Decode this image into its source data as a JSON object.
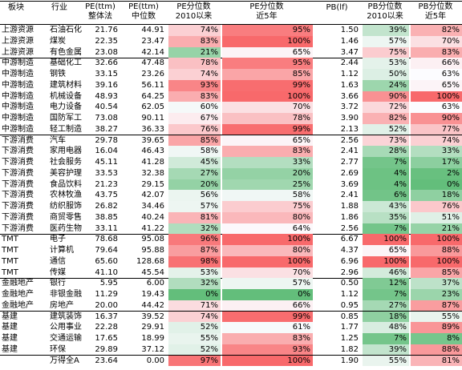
{
  "header": {
    "columns": [
      [
        "板块"
      ],
      [
        "行业"
      ],
      [
        "PE(ttm)",
        "整体法"
      ],
      [
        "PE(ttm)",
        "中位数"
      ],
      [
        "PE分位数",
        "2010以来"
      ],
      [
        "PE分位数",
        "近5年"
      ],
      [
        "PB(lf)"
      ],
      [
        "PB分位数",
        "2010以来"
      ],
      [
        "PB分位数",
        "近5年"
      ]
    ]
  },
  "table": {
    "rows": [
      [
        "上游资源",
        "石油石化",
        "21.76",
        "44.91",
        "74%",
        "95%",
        "1.50",
        "39%",
        "82%"
      ],
      [
        "上游资源",
        "煤炭",
        "22.35",
        "23.47",
        "83%",
        "100%",
        "1.46",
        "57%",
        "70%"
      ],
      [
        "上游资源",
        "有色金属",
        "23.08",
        "42.14",
        "21%",
        "65%",
        "3.47",
        "75%",
        "83%"
      ],
      [
        "中游制造",
        "基础化工",
        "32.66",
        "47.48",
        "78%",
        "95%",
        "2.44",
        "53%",
        "66%"
      ],
      [
        "中游制造",
        "钢铁",
        "33.15",
        "23.26",
        "74%",
        "85%",
        "1.12",
        "50%",
        "63%"
      ],
      [
        "中游制造",
        "建筑材料",
        "39.16",
        "56.11",
        "93%",
        "99%",
        "1.63",
        "24%",
        "65%"
      ],
      [
        "中游制造",
        "机械设备",
        "48.93",
        "64.25",
        "83%",
        "100%",
        "3.66",
        "90%",
        "100%"
      ],
      [
        "中游制造",
        "电力设备",
        "40.54",
        "62.05",
        "60%",
        "70%",
        "3.72",
        "72%",
        "63%"
      ],
      [
        "中游制造",
        "国防军工",
        "73.08",
        "90.11",
        "67%",
        "78%",
        "3.90",
        "82%",
        "90%"
      ],
      [
        "中游制造",
        "轻工制造",
        "38.27",
        "36.33",
        "76%",
        "99%",
        "2.13",
        "52%",
        "77%"
      ],
      [
        "下游消费",
        "汽车",
        "29.78",
        "39.65",
        "85%",
        "65%",
        "2.56",
        "73%",
        "74%"
      ],
      [
        "下游消费",
        "家用电器",
        "16.04",
        "46.43",
        "58%",
        "83%",
        "2.41",
        "28%",
        "33%"
      ],
      [
        "下游消费",
        "社会服务",
        "45.11",
        "41.28",
        "45%",
        "33%",
        "2.77",
        "7%",
        "17%"
      ],
      [
        "下游消费",
        "美容护理",
        "33.53",
        "32.38",
        "27%",
        "20%",
        "2.69",
        "4%",
        "2%"
      ],
      [
        "下游消费",
        "食品饮料",
        "21.23",
        "29.15",
        "20%",
        "25%",
        "3.69",
        "4%",
        "0%"
      ],
      [
        "下游消费",
        "农林牧渔",
        "43.75",
        "42.07",
        "56%",
        "58%",
        "2.41",
        "6%",
        "18%"
      ],
      [
        "下游消费",
        "纺织服饰",
        "26.82",
        "34.46",
        "57%",
        "75%",
        "1.88",
        "43%",
        "76%"
      ],
      [
        "下游消费",
        "商贸零售",
        "38.85",
        "40.24",
        "81%",
        "80%",
        "1.86",
        "35%",
        "51%"
      ],
      [
        "下游消费",
        "医药生物",
        "33.11",
        "41.22",
        "32%",
        "64%",
        "2.56",
        "7%",
        "21%"
      ],
      [
        "TMT",
        "电子",
        "78.68",
        "95.08",
        "96%",
        "100%",
        "6.67",
        "100%",
        "100%"
      ],
      [
        "TMT",
        "计算机",
        "79.64",
        "95.88",
        "87%",
        "80%",
        "4.37",
        "65%",
        "88%"
      ],
      [
        "TMT",
        "通信",
        "65.60",
        "128.68",
        "98%",
        "100%",
        "6.96",
        "100%",
        "100%"
      ],
      [
        "TMT",
        "传媒",
        "41.10",
        "45.54",
        "53%",
        "70%",
        "2.96",
        "46%",
        "85%"
      ],
      [
        "金融地产",
        "银行",
        "5.95",
        "6.00",
        "32%",
        "57%",
        "0.50",
        "12%",
        "37%"
      ],
      [
        "金融地产",
        "非银金融",
        "11.29",
        "19.43",
        "0%",
        "0%",
        "1.12",
        "7%",
        "23%"
      ],
      [
        "金融地产",
        "房地产",
        "20.00",
        "44.42",
        "71%",
        "66%",
        "0.95",
        "27%",
        "87%"
      ],
      [
        "基建",
        "建筑装饰",
        "16.37",
        "39.52",
        "74%",
        "99%",
        "0.85",
        "18%",
        "55%"
      ],
      [
        "基建",
        "公用事业",
        "22.28",
        "29.91",
        "52%",
        "61%",
        "1.77",
        "48%",
        "89%"
      ],
      [
        "基建",
        "交通运输",
        "17.65",
        "18.99",
        "55%",
        "83%",
        "1.25",
        "7%",
        "8%"
      ],
      [
        "基建",
        "环保",
        "29.89",
        "37.12",
        "52%",
        "93%",
        "1.82",
        "39%",
        "88%"
      ],
      [
        null,
        "万得全A",
        "23.64",
        "0.00",
        "97%",
        "100%",
        "1.90",
        "55%",
        "81%"
      ]
    ]
  }
}
